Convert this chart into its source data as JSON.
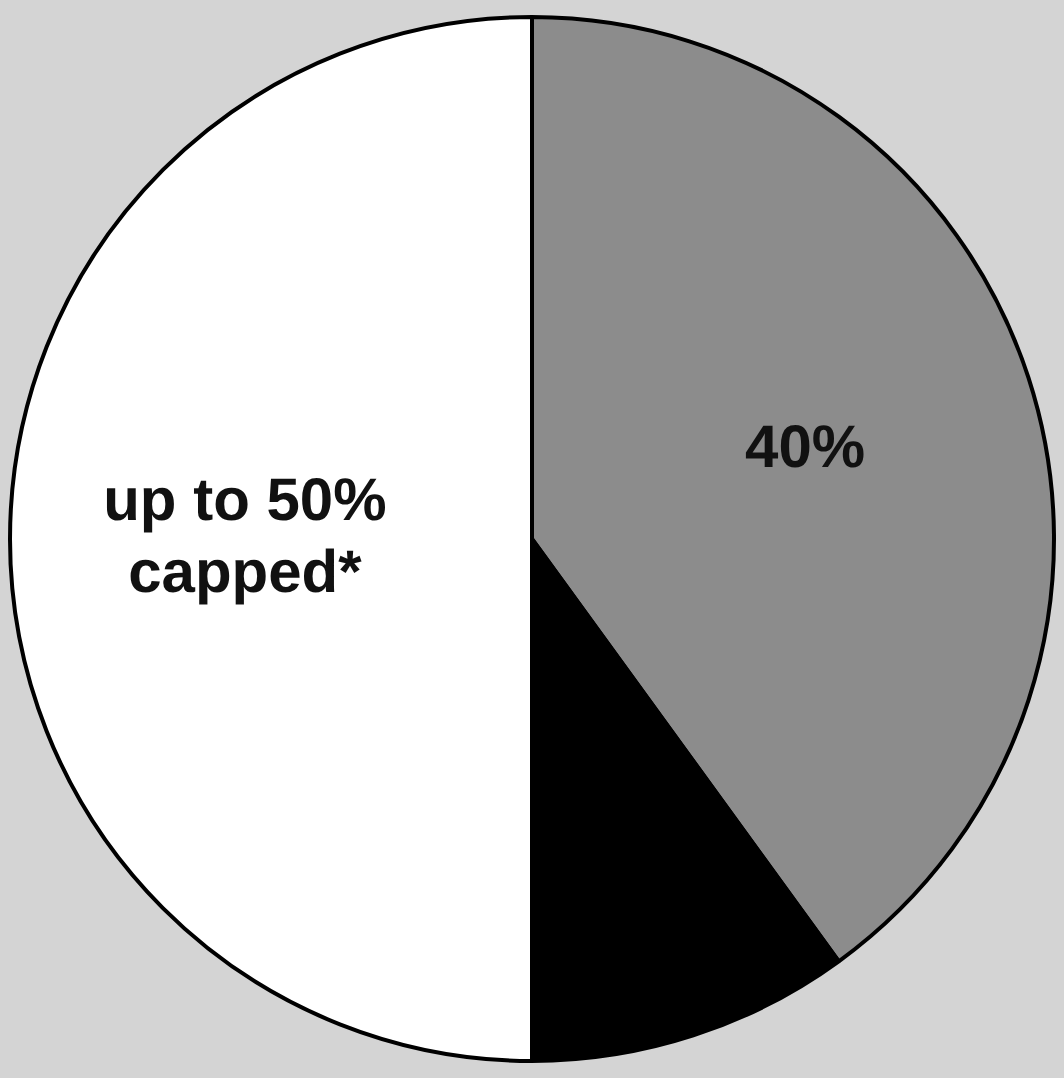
{
  "chart_data": {
    "type": "pie",
    "categories": [
      null,
      null,
      null
    ],
    "values": [
      40,
      10,
      50
    ],
    "colors": [
      "#8c8c8c",
      "#000000",
      "#ffffff"
    ],
    "value_labels": [
      "40%",
      null,
      "up to 50%\ncapped*"
    ],
    "legend": false
  }
}
